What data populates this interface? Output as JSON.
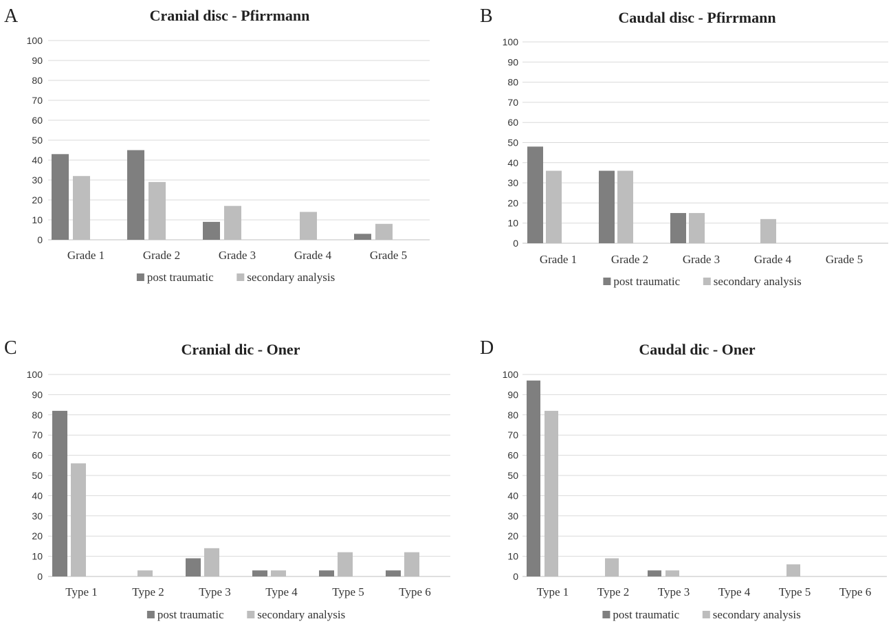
{
  "colors": {
    "post_traumatic": "#7f7f7f",
    "secondary_analysis": "#bdbdbd",
    "grid": "#d9d9d9",
    "axis": "#bfbfbf"
  },
  "chart_data": [
    {
      "panel": "A",
      "type": "bar",
      "title": "Cranial disc - Pfirrmann",
      "categories": [
        "Grade 1",
        "Grade 2",
        "Grade 3",
        "Grade 4",
        "Grade 5"
      ],
      "series": [
        {
          "name": "post traumatic",
          "values": [
            43,
            45,
            9,
            0,
            3
          ]
        },
        {
          "name": "secondary analysis",
          "values": [
            32,
            29,
            17,
            14,
            8
          ]
        }
      ],
      "ylim": [
        0,
        100
      ],
      "yticks": [
        0,
        10,
        20,
        30,
        40,
        50,
        60,
        70,
        80,
        90,
        100
      ],
      "grid": true,
      "legend": "bottom"
    },
    {
      "panel": "B",
      "type": "bar",
      "title": "Caudal disc - Pfirrmann",
      "categories": [
        "Grade 1",
        "Grade 2",
        "Grade 3",
        "Grade 4",
        "Grade 5"
      ],
      "series": [
        {
          "name": "post traumatic",
          "values": [
            48,
            36,
            15,
            0,
            0
          ]
        },
        {
          "name": "secondary analysis",
          "values": [
            36,
            36,
            15,
            12,
            0
          ]
        }
      ],
      "ylim": [
        0,
        100
      ],
      "yticks": [
        0,
        10,
        20,
        30,
        40,
        50,
        60,
        70,
        80,
        90,
        100
      ],
      "grid": true,
      "legend": "bottom"
    },
    {
      "panel": "C",
      "type": "bar",
      "title": "Cranial dic - Oner",
      "categories": [
        "Type 1",
        "Type 2",
        "Type 3",
        "Type 4",
        "Type 5",
        "Type 6"
      ],
      "series": [
        {
          "name": "post traumatic",
          "values": [
            82,
            0,
            9,
            3,
            3,
            3
          ]
        },
        {
          "name": "secondary analysis",
          "values": [
            56,
            3,
            14,
            3,
            12,
            12
          ]
        }
      ],
      "ylim": [
        0,
        100
      ],
      "yticks": [
        0,
        10,
        20,
        30,
        40,
        50,
        60,
        70,
        80,
        90,
        100
      ],
      "grid": true,
      "legend": "bottom"
    },
    {
      "panel": "D",
      "type": "bar",
      "title": "Caudal dic - Oner",
      "categories": [
        "Type 1",
        "Type 2",
        "Type 3",
        "Type 4",
        "Type 5",
        "Type 6"
      ],
      "series": [
        {
          "name": "post traumatic",
          "values": [
            97,
            0,
            3,
            0,
            0,
            0
          ]
        },
        {
          "name": "secondary analysis",
          "values": [
            82,
            9,
            3,
            0,
            6,
            0
          ]
        }
      ],
      "ylim": [
        0,
        100
      ],
      "yticks": [
        0,
        10,
        20,
        30,
        40,
        50,
        60,
        70,
        80,
        90,
        100
      ],
      "grid": true,
      "legend": "bottom"
    }
  ]
}
